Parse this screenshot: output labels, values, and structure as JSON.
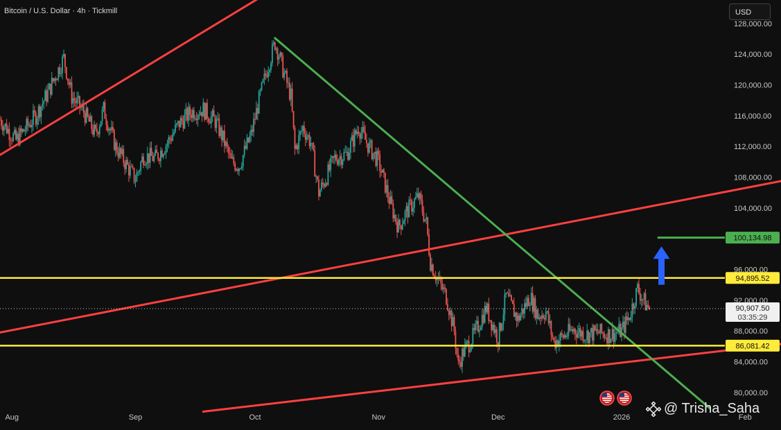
{
  "header": {
    "title": "Bitcoin / U.S. Dollar · 4h · Tickmill"
  },
  "currency_button": {
    "label": "USD"
  },
  "watermark": {
    "text": "@ Trisha_Saha"
  },
  "colors": {
    "background": "#0f0f0f",
    "resistance_line": "#ff4040",
    "downtrend_line": "#4caf50",
    "horizontal_level": "#ffeb3b",
    "target_line": "#4caf50",
    "arrow": "#2962ff",
    "candle_up": "#26a69a",
    "candle_down": "#ef5350"
  },
  "chart_data": {
    "type": "candlestick",
    "y_axis": {
      "ylim": [
        78000,
        128800
      ],
      "ticks": [
        80000,
        84000,
        88000,
        92000,
        96000,
        100000,
        104000,
        108000,
        112000,
        116000,
        120000,
        124000,
        128000
      ],
      "tick_labels": [
        "80,000.00",
        "84,000.00",
        "88,000.00",
        "92,000.00",
        "96,000.00",
        "100,000.00",
        "104,000.00",
        "108,000.00",
        "112,000.00",
        "116,000.00",
        "120,000.00",
        "124,000.00",
        "128,000.00"
      ]
    },
    "x_axis": {
      "labels": [
        "Aug",
        "Sep",
        "Oct",
        "Nov",
        "Dec",
        "2026",
        "Feb"
      ],
      "label_dates": [
        "2025-08-01",
        "2025-09-01",
        "2025-10-01",
        "2025-11-01",
        "2025-12-01",
        "2026-01-01",
        "2026-02-01"
      ],
      "range": [
        "2025-07-29",
        "2026-02-10"
      ]
    },
    "price_path": [
      [
        "2025-07-29",
        115500
      ],
      [
        "2025-08-02",
        112800
      ],
      [
        "2025-08-07",
        116000
      ],
      [
        "2025-08-10",
        119000
      ],
      [
        "2025-08-14",
        123500
      ],
      [
        "2025-08-16",
        118500
      ],
      [
        "2025-08-19",
        116500
      ],
      [
        "2025-08-22",
        113500
      ],
      [
        "2025-08-24",
        116800
      ],
      [
        "2025-08-27",
        112000
      ],
      [
        "2025-08-31",
        108500
      ],
      [
        "2025-09-01",
        107800
      ],
      [
        "2025-09-03",
        110800
      ],
      [
        "2025-09-06",
        110500
      ],
      [
        "2025-09-09",
        112500
      ],
      [
        "2025-09-12",
        115000
      ],
      [
        "2025-09-15",
        116500
      ],
      [
        "2025-09-18",
        116800
      ],
      [
        "2025-09-21",
        115300
      ],
      [
        "2025-09-23",
        113000
      ],
      [
        "2025-09-25",
        110000
      ],
      [
        "2025-09-27",
        109500
      ],
      [
        "2025-09-30",
        113500
      ],
      [
        "2025-10-02",
        118000
      ],
      [
        "2025-10-04",
        122000
      ],
      [
        "2025-10-06",
        125500
      ],
      [
        "2025-10-07",
        124000
      ],
      [
        "2025-10-08",
        122000
      ],
      [
        "2025-10-10",
        118500
      ],
      [
        "2025-10-11",
        111500
      ],
      [
        "2025-10-13",
        114500
      ],
      [
        "2025-10-15",
        112500
      ],
      [
        "2025-10-17",
        106000
      ],
      [
        "2025-10-18",
        107000
      ],
      [
        "2025-10-21",
        110500
      ],
      [
        "2025-10-24",
        111000
      ],
      [
        "2025-10-27",
        114500
      ],
      [
        "2025-10-29",
        112500
      ],
      [
        "2025-11-01",
        110000
      ],
      [
        "2025-11-04",
        104500
      ],
      [
        "2025-11-06",
        101500
      ],
      [
        "2025-11-08",
        103500
      ],
      [
        "2025-11-11",
        105500
      ],
      [
        "2025-11-13",
        102000
      ],
      [
        "2025-11-14",
        97000
      ],
      [
        "2025-11-16",
        94500
      ],
      [
        "2025-11-18",
        92500
      ],
      [
        "2025-11-20",
        88000
      ],
      [
        "2025-11-21",
        83500
      ],
      [
        "2025-11-22",
        85000
      ],
      [
        "2025-11-25",
        87500
      ],
      [
        "2025-11-28",
        91000
      ],
      [
        "2025-12-01",
        87000
      ],
      [
        "2025-12-03",
        92500
      ],
      [
        "2025-12-06",
        89500
      ],
      [
        "2025-12-09",
        92500
      ],
      [
        "2025-12-11",
        90000
      ],
      [
        "2025-12-13",
        90500
      ],
      [
        "2025-12-15",
        86500
      ],
      [
        "2025-12-18",
        87500
      ],
      [
        "2025-12-20",
        88200
      ],
      [
        "2025-12-23",
        87500
      ],
      [
        "2025-12-26",
        87800
      ],
      [
        "2025-12-29",
        87500
      ],
      [
        "2026-01-01",
        88000
      ],
      [
        "2026-01-03",
        90000
      ],
      [
        "2026-01-05",
        93500
      ],
      [
        "2026-01-07",
        91500
      ],
      [
        "2026-01-08",
        90907.5
      ]
    ],
    "levels": [
      {
        "price": 94895.52,
        "label": "94,895.52",
        "kind": "resistance"
      },
      {
        "price": 86081.42,
        "label": "86,081.42",
        "kind": "support"
      },
      {
        "price": 100134.98,
        "label": "100,134.98",
        "kind": "target",
        "start": "2026-01-10"
      }
    ],
    "current_price": {
      "price": 90907.5,
      "label": "90,907.50",
      "countdown": "03:35:29"
    },
    "trendlines": [
      {
        "name": "channel-upper-line",
        "color": "#ff4040",
        "from": [
          "2025-07-29",
          110900
        ],
        "to": [
          "2025-10-02",
          131300
        ]
      },
      {
        "name": "channel-middle-line",
        "color": "#ff4040",
        "from": [
          "2025-07-29",
          87800
        ],
        "to": [
          "2026-02-10",
          107500
        ]
      },
      {
        "name": "channel-lower-line",
        "color": "#ff4040",
        "from": [
          "2025-09-18",
          77500
        ],
        "to": [
          "2026-02-10",
          86300
        ]
      },
      {
        "name": "downtrend-line",
        "color": "#4caf50",
        "from": [
          "2025-10-06",
          126100
        ],
        "to": [
          "2026-01-23",
          78000
        ]
      }
    ],
    "arrow": {
      "date": "2026-01-11",
      "from_price": 94000,
      "to_price": 99000,
      "direction": "up"
    }
  }
}
